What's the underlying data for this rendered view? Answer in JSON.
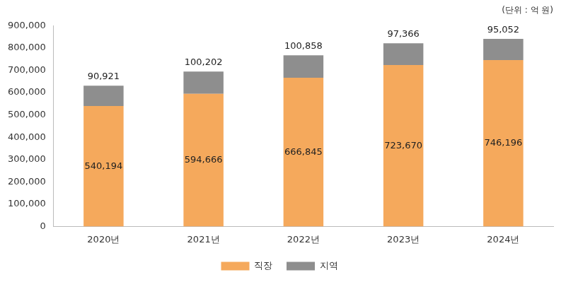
{
  "chart_data": {
    "type": "bar",
    "subtitle": "(단위 : 억 원)",
    "categories": [
      "2020년",
      "2021년",
      "2022년",
      "2023년",
      "2024년"
    ],
    "series": [
      {
        "name": "직장",
        "color": "#f5a95c",
        "values": [
          540194,
          594666,
          666845,
          723670,
          746196
        ],
        "value_labels": [
          "540,194",
          "594,666",
          "666,845",
          "723,670",
          "746,196"
        ]
      },
      {
        "name": "지역",
        "color": "#8e8e8e",
        "values": [
          90921,
          100202,
          100858,
          97366,
          95052
        ],
        "value_labels": [
          "90,921",
          "100,202",
          "100,858",
          "97,366",
          "95,052"
        ]
      }
    ],
    "stacked": true,
    "data_labels": true,
    "legend": "bottom",
    "grid": false,
    "ylim": [
      0,
      900000
    ],
    "yticks": [
      0,
      {
        "value": 100000,
        "label": "100,000"
      },
      {
        "value": 200000,
        "label": "200,000"
      },
      {
        "value": 300000,
        "label": "300,000"
      },
      {
        "value": 400000,
        "label": "400,000"
      },
      {
        "value": 500000,
        "label": "500,000"
      },
      {
        "value": 600000,
        "label": "600,000"
      },
      {
        "value": 700000,
        "label": "700,000"
      },
      {
        "value": 800000,
        "label": "800,000"
      },
      {
        "value": 900000,
        "label": "900,000"
      }
    ]
  }
}
